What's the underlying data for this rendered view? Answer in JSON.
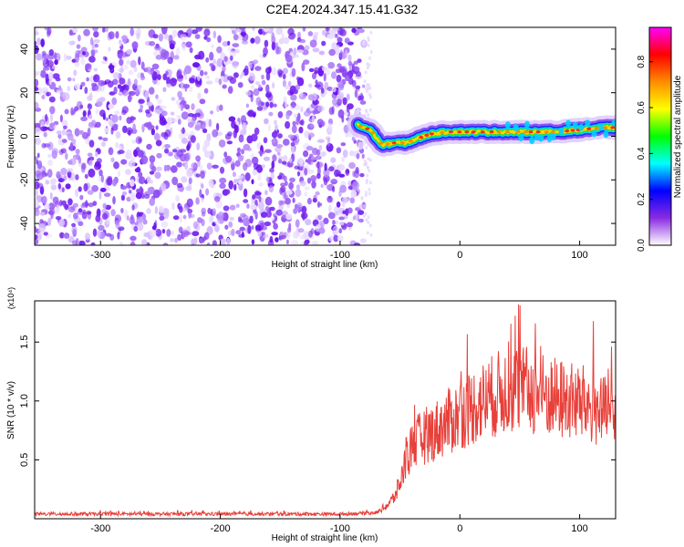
{
  "title": "C2E4.2024.347.15.41.G32",
  "chart_data": [
    {
      "type": "heatmap",
      "xlabel": "Height of straight line (km)",
      "ylabel": "Frequency (Hz)",
      "xlim": [
        -355,
        130
      ],
      "ylim": [
        -50,
        50
      ],
      "xticks": [
        -300,
        -200,
        -100,
        0,
        100
      ],
      "yticks": [
        -40,
        -20,
        0,
        20,
        40
      ],
      "noise_region_x": [
        -355,
        -80
      ],
      "signal_ridge": {
        "x": [
          -85,
          -75,
          -65,
          -55,
          -45,
          -35,
          -25,
          -10,
          0,
          20,
          40,
          60,
          80,
          100,
          120,
          130
        ],
        "y": [
          5,
          3,
          -4,
          -3,
          -3,
          -1,
          1,
          2,
          2,
          2,
          2,
          2,
          2,
          3,
          4,
          4
        ]
      },
      "colorbar": {
        "label": "Normalized spectral amplitude",
        "range": [
          0,
          0.95
        ],
        "ticks": [
          "0.0",
          "0.2",
          "0.4",
          "0.6",
          "0.8"
        ],
        "tick_values": [
          0,
          0.2,
          0.4,
          0.6,
          0.8
        ],
        "colors": [
          "#ffffff",
          "#8a2be2",
          "#0000ff",
          "#00ffff",
          "#00ff00",
          "#ffff00",
          "#ff8c00",
          "#ff0000",
          "#ff00ff"
        ]
      }
    },
    {
      "type": "line",
      "xlabel": "Height of straight line (km)",
      "ylabel": "SNR (10 * v/v)",
      "y_multiplier": "(x10⁴)",
      "xlim": [
        -355,
        130
      ],
      "ylim": [
        0,
        18500
      ],
      "xticks": [
        -300,
        -200,
        -100,
        0,
        100
      ],
      "yticks": [
        5000,
        10000,
        15000
      ],
      "ytick_labels": [
        "0.5",
        "1.0",
        "1.5"
      ],
      "series": [
        {
          "color": "#e8403a",
          "x": [
            -355,
            -300,
            -200,
            -100,
            -70,
            -60,
            -55,
            -50,
            -45,
            -40,
            -30,
            -20,
            -10,
            0,
            10,
            20,
            30,
            40,
            50,
            60,
            70,
            80,
            90,
            100,
            110,
            120,
            130
          ],
          "y": [
            400,
            400,
            400,
            400,
            500,
            1200,
            1800,
            3000,
            5000,
            6200,
            7000,
            7500,
            8200,
            8800,
            9500,
            10000,
            10500,
            11000,
            11000,
            10800,
            10500,
            10200,
            10000,
            9800,
            9500,
            9000,
            8500
          ]
        }
      ]
    }
  ]
}
